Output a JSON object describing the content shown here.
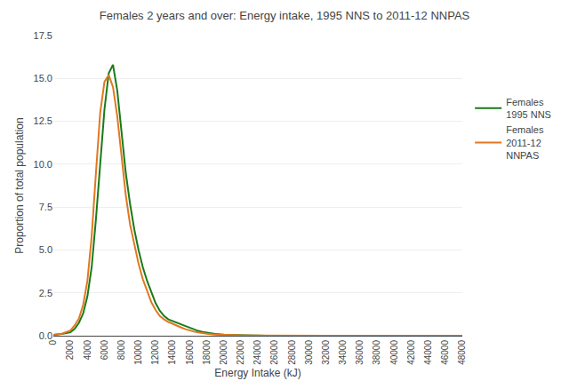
{
  "chart_data": {
    "type": "line",
    "title": "Females 2 years and over: Energy intake, 1995 NNS to 2011-12 NNPAS",
    "xlabel": "Energy Intake (kJ)",
    "ylabel": "Proportion of total population",
    "x": [
      0,
      1000,
      2000,
      2500,
      3000,
      3500,
      4000,
      4500,
      5000,
      5500,
      6000,
      6500,
      7000,
      7500,
      8000,
      8500,
      9000,
      9500,
      10000,
      10500,
      11000,
      11500,
      12000,
      12500,
      13000,
      13500,
      14000,
      14500,
      15000,
      15500,
      16000,
      16500,
      17000,
      17500,
      18000,
      19000,
      20000,
      21000,
      22000,
      23000,
      24000,
      25000,
      26000,
      28000,
      30000,
      32000,
      34000,
      36000,
      38000,
      40000,
      48000
    ],
    "series": [
      {
        "name": "Females\n1995 NNS",
        "color": "#1a7a1a",
        "values": [
          0.05,
          0.1,
          0.2,
          0.4,
          0.75,
          1.3,
          2.3,
          4.0,
          6.8,
          10.2,
          13.2,
          15.3,
          15.8,
          14.3,
          12.0,
          9.5,
          7.7,
          6.2,
          5.0,
          4.0,
          3.2,
          2.5,
          1.9,
          1.45,
          1.15,
          0.95,
          0.85,
          0.75,
          0.65,
          0.55,
          0.45,
          0.35,
          0.28,
          0.22,
          0.17,
          0.1,
          0.06,
          0.04,
          0.03,
          0.02,
          0.01,
          0.005,
          0.002,
          0.001,
          0.0,
          0.0,
          0.0,
          0.0,
          0.0,
          0.0,
          0.0
        ]
      },
      {
        "name": "Females\n2011-12\nNNPAS",
        "color": "#e07820",
        "values": [
          0.05,
          0.12,
          0.3,
          0.6,
          1.0,
          1.8,
          3.2,
          5.8,
          9.5,
          13.0,
          14.8,
          15.2,
          14.5,
          12.8,
          10.5,
          8.2,
          6.5,
          5.3,
          4.2,
          3.3,
          2.6,
          1.95,
          1.5,
          1.15,
          0.95,
          0.8,
          0.7,
          0.57,
          0.48,
          0.38,
          0.3,
          0.24,
          0.19,
          0.15,
          0.12,
          0.07,
          0.045,
          0.03,
          0.02,
          0.015,
          0.01,
          0.007,
          0.003,
          0.001,
          0.0,
          0.0,
          0.0,
          0.0,
          0.0,
          0.0,
          0.0
        ]
      }
    ],
    "xlim": [
      0,
      48000
    ],
    "xticks": [
      0,
      2000,
      4000,
      6000,
      8000,
      10000,
      12000,
      14000,
      16000,
      18000,
      20000,
      22000,
      24000,
      26000,
      28000,
      30000,
      32000,
      34000,
      36000,
      38000,
      40000,
      42000,
      44000,
      46000,
      48000
    ],
    "ylim": [
      0,
      17.5
    ],
    "yticks": [
      {
        "value": 0,
        "label": "0.0"
      },
      2.5,
      {
        "value": 5,
        "label": "5.0"
      },
      7.5,
      {
        "value": 10,
        "label": "10.0"
      },
      12.5,
      {
        "value": 15,
        "label": "15.0"
      },
      17.5
    ],
    "grid": "y",
    "legend": "right"
  }
}
